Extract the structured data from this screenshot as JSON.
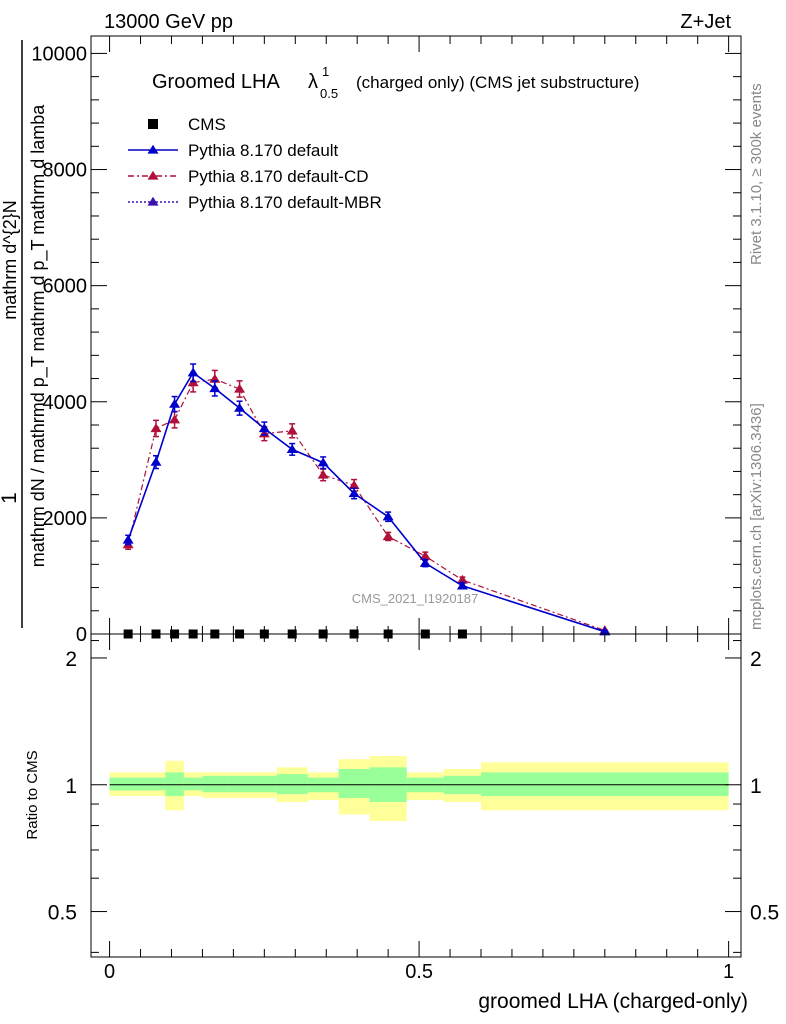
{
  "header": {
    "left": "13000 GeV pp",
    "right": "Z+Jet"
  },
  "side": {
    "rivet": "Rivet 3.1.10, ≥ 300k events",
    "mcplots": "mcplots.cern.ch [arXiv:1306.3436]"
  },
  "watermark": "CMS_2021_I1920187",
  "colors": {
    "cms": "#000000",
    "default": "#0000cc",
    "cd": "#b0103a",
    "mbr": "#3a10b0",
    "band_inner": "#99ff99",
    "band_outer": "#ffff99"
  },
  "chart_data": [
    {
      "type": "line",
      "title": "Groomed LHA",
      "title_lambda": "λ",
      "title_sup": "1",
      "title_sub": "0.5",
      "title_suffix": "(charged only) (CMS jet substructure)",
      "xlabel": "groomed LHA (charged-only)",
      "ylabel_num": "1",
      "ylabel_den": "mathrm dN / mathrmd p_T mathrm d p_T mathrm d lamba",
      "ylabel_top": "mathrm d^{2}N",
      "xlim": [
        -0.03,
        1.02
      ],
      "ylim": [
        0,
        10300
      ],
      "yticks": [
        0,
        2000,
        4000,
        6000,
        8000,
        10000
      ],
      "yticklabels": [
        "0",
        "2000",
        "4000",
        "6000",
        "8000",
        "10000"
      ],
      "legend": [
        {
          "key": "cms",
          "label": "CMS"
        },
        {
          "key": "default",
          "label": "Pythia 8.170 default"
        },
        {
          "key": "cd",
          "label": "Pythia 8.170 default-CD"
        },
        {
          "key": "mbr",
          "label": "Pythia 8.170 default-MBR"
        }
      ],
      "series": [
        {
          "name": "CMS",
          "key": "cms",
          "x": [
            0.03,
            0.075,
            0.105,
            0.135,
            0.17,
            0.21,
            0.25,
            0.295,
            0.345,
            0.395,
            0.45,
            0.51,
            0.57
          ],
          "y": [
            0,
            0,
            0,
            0,
            0,
            0,
            0,
            0,
            0,
            0,
            0,
            0,
            0
          ]
        },
        {
          "name": "Pythia 8.170 default",
          "key": "default",
          "x": [
            0.03,
            0.075,
            0.105,
            0.135,
            0.17,
            0.21,
            0.25,
            0.295,
            0.345,
            0.395,
            0.45,
            0.51,
            0.57,
            0.8
          ],
          "y": [
            1620,
            2960,
            3960,
            4500,
            4230,
            3890,
            3540,
            3180,
            2950,
            2420,
            2020,
            1220,
            830,
            40
          ],
          "yerr": [
            80,
            110,
            130,
            150,
            130,
            120,
            110,
            100,
            100,
            90,
            80,
            60,
            50,
            10
          ]
        },
        {
          "name": "Pythia 8.170 default-CD",
          "key": "cd",
          "x": [
            0.03,
            0.075,
            0.105,
            0.135,
            0.17,
            0.21,
            0.25,
            0.295,
            0.345,
            0.395,
            0.45,
            0.51,
            0.57,
            0.8
          ],
          "y": [
            1540,
            3540,
            3690,
            4330,
            4390,
            4220,
            3450,
            3500,
            2740,
            2560,
            1680,
            1340,
            930,
            60
          ],
          "yerr": [
            80,
            140,
            140,
            160,
            150,
            140,
            120,
            120,
            100,
            100,
            70,
            70,
            50,
            10
          ]
        },
        {
          "name": "Pythia 8.170 default-MBR",
          "key": "mbr",
          "x": [],
          "y": []
        }
      ]
    },
    {
      "type": "area",
      "ylabel": "Ratio to CMS",
      "xlim": [
        -0.03,
        1.02
      ],
      "ylim": [
        0.39,
        2.28
      ],
      "yticks": [
        0.5,
        1,
        2
      ],
      "yticklabels": [
        "0.5",
        "1",
        "2"
      ],
      "xticks": [
        0,
        0.5,
        1
      ],
      "xticklabels": [
        "0",
        "0.5",
        "1"
      ],
      "bin_edges": [
        0,
        0.06,
        0.09,
        0.12,
        0.15,
        0.19,
        0.23,
        0.27,
        0.32,
        0.37,
        0.42,
        0.48,
        0.54,
        0.6,
        1.0
      ],
      "band_inner_lo": [
        0.97,
        0.97,
        0.94,
        0.97,
        0.96,
        0.96,
        0.96,
        0.95,
        0.96,
        0.93,
        0.91,
        0.96,
        0.95,
        0.94
      ],
      "band_inner_hi": [
        1.04,
        1.04,
        1.07,
        1.04,
        1.05,
        1.05,
        1.05,
        1.06,
        1.04,
        1.09,
        1.1,
        1.04,
        1.05,
        1.07
      ],
      "band_outer_lo": [
        0.94,
        0.94,
        0.87,
        0.94,
        0.93,
        0.93,
        0.93,
        0.91,
        0.92,
        0.85,
        0.82,
        0.92,
        0.91,
        0.87
      ],
      "band_outer_hi": [
        1.07,
        1.07,
        1.14,
        1.07,
        1.07,
        1.07,
        1.07,
        1.1,
        1.07,
        1.15,
        1.17,
        1.07,
        1.09,
        1.13
      ]
    }
  ]
}
